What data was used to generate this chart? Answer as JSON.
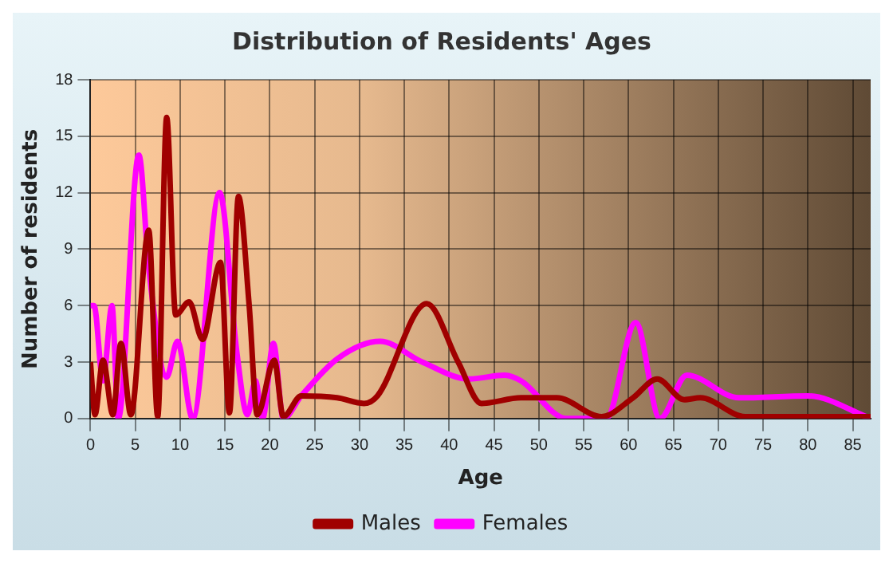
{
  "chart_data": {
    "type": "line",
    "title": "Distribution of Residents' Ages",
    "xlabel": "Age",
    "ylabel": "Number of residents",
    "xlim": [
      0,
      87
    ],
    "xticks": [
      0,
      5,
      10,
      15,
      20,
      25,
      30,
      35,
      40,
      45,
      50,
      55,
      60,
      65,
      70,
      75,
      80,
      85
    ],
    "ylim": [
      0,
      18
    ],
    "yticks": [
      0,
      3,
      6,
      9,
      12,
      15,
      18
    ],
    "grid": true,
    "legend": "bottom",
    "series": [
      {
        "name": "Males",
        "color": "#a00000",
        "x": [
          0,
          0.5,
          1.4,
          2.5,
          3.4,
          4.5,
          6.5,
          7.5,
          8.5,
          9.5,
          11,
          12.5,
          14.5,
          15.5,
          16.5,
          17.7,
          18.6,
          20.5,
          21.5,
          23.5,
          27.5,
          30.5,
          32,
          37.5,
          41,
          43.6,
          48,
          52,
          57,
          60.5,
          63.2,
          66.2,
          68,
          73,
          87
        ],
        "values": [
          3,
          0.2,
          3.1,
          0.2,
          4,
          0.2,
          10,
          0.1,
          16,
          5.5,
          6.2,
          4.2,
          8.3,
          0.3,
          11.8,
          6,
          0.2,
          3.1,
          0.1,
          1.2,
          1.1,
          0.8,
          1.2,
          6.1,
          3,
          0.8,
          1.1,
          1.1,
          0.1,
          1.1,
          2.1,
          1,
          1.1,
          0.1,
          0.1
        ]
      },
      {
        "name": "Females",
        "color": "#ff00ff",
        "x": [
          0,
          0.4,
          1.4,
          2.4,
          3.1,
          5.4,
          6.5,
          8.5,
          9.7,
          11.4,
          14.4,
          16.3,
          17.5,
          18.4,
          19.2,
          20.4,
          21.5,
          23.5,
          27.6,
          32.3,
          37,
          42.2,
          46.2,
          48,
          53.1,
          57.5,
          60.8,
          63.5,
          66.5,
          72.3,
          80,
          87
        ],
        "values": [
          6,
          6,
          2,
          6,
          0,
          14,
          8,
          2.2,
          4.1,
          0,
          12,
          3.6,
          0.2,
          2,
          0,
          4,
          0,
          1.2,
          3.2,
          4.1,
          3,
          2.1,
          2.3,
          2,
          0,
          0,
          5.1,
          0,
          2.3,
          1.1,
          1.2,
          0
        ]
      }
    ]
  }
}
